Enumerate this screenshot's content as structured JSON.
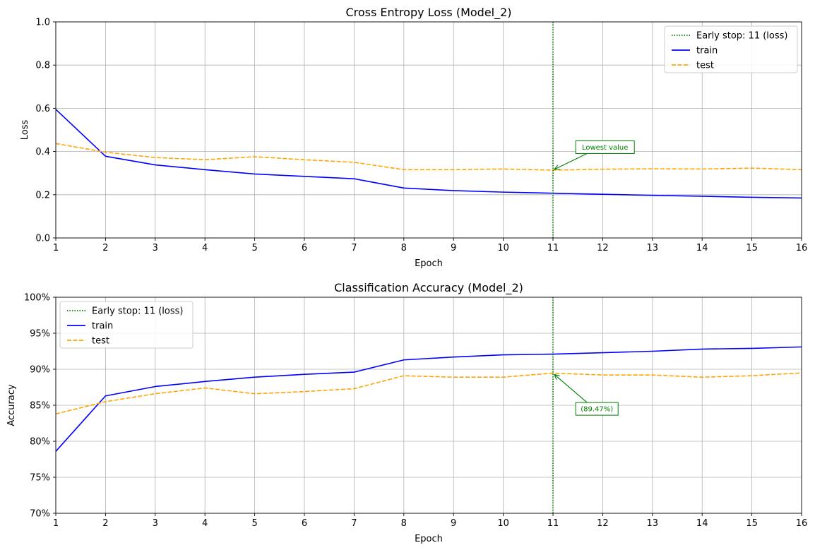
{
  "colors": {
    "train": "#0000ff",
    "test": "#ffa500",
    "early_stop": "#008000",
    "grid": "#b0b0b0"
  },
  "chart_data": [
    {
      "type": "line",
      "title": "Cross Entropy Loss (Model_2)",
      "xlabel": "Epoch",
      "ylabel": "Loss",
      "x": [
        1,
        2,
        3,
        4,
        5,
        6,
        7,
        8,
        9,
        10,
        11,
        12,
        13,
        14,
        15,
        16
      ],
      "xlim": [
        1,
        16
      ],
      "ylim": [
        0,
        1
      ],
      "x_ticks": [
        1,
        2,
        3,
        4,
        5,
        6,
        7,
        8,
        9,
        10,
        11,
        12,
        13,
        14,
        15,
        16
      ],
      "y_ticks": [
        0,
        0.2,
        0.4,
        0.6,
        0.8,
        1.0
      ],
      "y_tick_labels": [
        "0.0",
        "0.2",
        "0.4",
        "0.6",
        "0.8",
        "1.0"
      ],
      "grid": true,
      "legend_position": "top-right",
      "series": [
        {
          "name": "train",
          "color_key": "train",
          "style": "solid",
          "values": [
            0.595,
            0.378,
            0.338,
            0.316,
            0.296,
            0.285,
            0.274,
            0.231,
            0.219,
            0.212,
            0.207,
            0.202,
            0.197,
            0.193,
            0.188,
            0.185
          ]
        },
        {
          "name": "test",
          "color_key": "test",
          "style": "dashed",
          "values": [
            0.437,
            0.397,
            0.372,
            0.362,
            0.376,
            0.362,
            0.35,
            0.316,
            0.316,
            0.319,
            0.314,
            0.318,
            0.32,
            0.319,
            0.323,
            0.316
          ]
        }
      ],
      "early_stop": {
        "x": 11,
        "label": "Early stop: 11 (loss)"
      },
      "annotation": {
        "text": "Lowest value",
        "point": [
          11,
          0.314
        ],
        "text_pos": [
          11.5,
          0.42
        ]
      }
    },
    {
      "type": "line",
      "title": "Classification Accuracy (Model_2)",
      "xlabel": "Epoch",
      "ylabel": "Accuracy",
      "x": [
        1,
        2,
        3,
        4,
        5,
        6,
        7,
        8,
        9,
        10,
        11,
        12,
        13,
        14,
        15,
        16
      ],
      "xlim": [
        1,
        16
      ],
      "ylim": [
        70,
        100
      ],
      "x_ticks": [
        1,
        2,
        3,
        4,
        5,
        6,
        7,
        8,
        9,
        10,
        11,
        12,
        13,
        14,
        15,
        16
      ],
      "y_ticks": [
        70,
        75,
        80,
        85,
        90,
        95,
        100
      ],
      "y_tick_labels": [
        "70%",
        "75%",
        "80%",
        "85%",
        "90%",
        "95%",
        "100%"
      ],
      "grid": true,
      "legend_position": "top-left",
      "series": [
        {
          "name": "train",
          "color_key": "train",
          "style": "solid",
          "values": [
            78.6,
            86.3,
            87.6,
            88.3,
            88.9,
            89.3,
            89.6,
            91.3,
            91.7,
            92.0,
            92.1,
            92.3,
            92.5,
            92.8,
            92.9,
            93.1
          ]
        },
        {
          "name": "test",
          "color_key": "test",
          "style": "dashed",
          "values": [
            83.8,
            85.5,
            86.6,
            87.4,
            86.6,
            86.9,
            87.3,
            89.1,
            88.9,
            88.9,
            89.47,
            89.2,
            89.2,
            88.9,
            89.1,
            89.5
          ]
        }
      ],
      "early_stop": {
        "x": 11,
        "label": "Early stop: 11 (loss)"
      },
      "annotation": {
        "text": "(89.47%)",
        "point": [
          11,
          89.47
        ],
        "text_pos": [
          11.5,
          84.5
        ]
      }
    }
  ]
}
